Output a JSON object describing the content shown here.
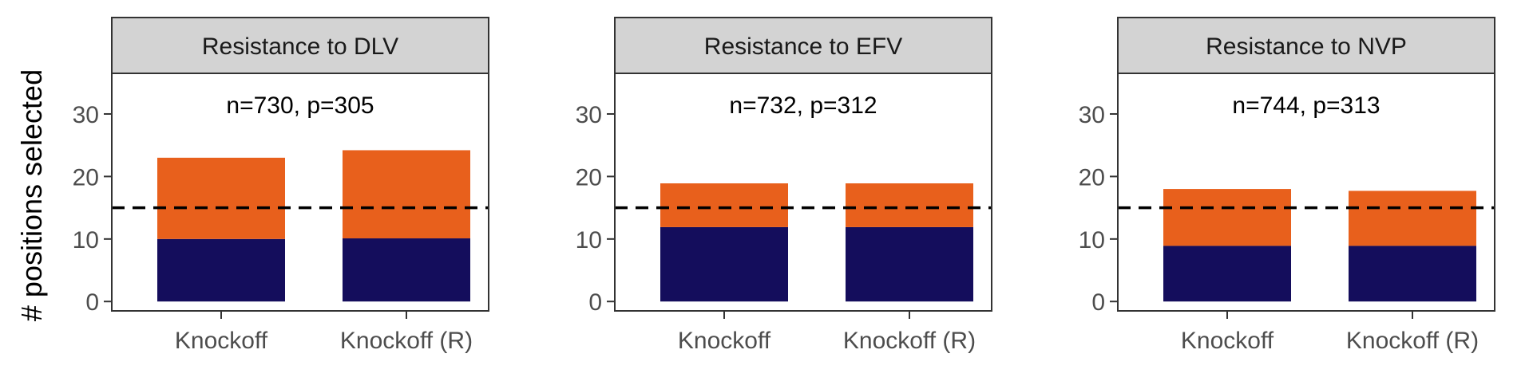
{
  "ylabel": "# positions selected",
  "colors": {
    "top_segment": "#E8601C",
    "bottom_segment": "#140D5C",
    "strip_fill": "#D3D3D3",
    "frame": "#333333",
    "reference_line": "#000000"
  },
  "chart_data": [
    {
      "type": "bar",
      "stacked": true,
      "title": "Resistance to DLV",
      "annotation": "n=730, p=305",
      "categories": [
        "Knockoff",
        "Knockoff (R)"
      ],
      "series": [
        {
          "values": [
            10,
            10.1
          ]
        },
        {
          "values": [
            13,
            14.1
          ]
        }
      ],
      "totals": [
        23,
        24.2
      ],
      "reference_line": 15,
      "yticks": [
        0,
        10,
        20,
        30
      ],
      "ylim": [
        -1.5,
        36.5
      ]
    },
    {
      "type": "bar",
      "stacked": true,
      "title": "Resistance to EFV",
      "annotation": "n=732, p=312",
      "categories": [
        "Knockoff",
        "Knockoff (R)"
      ],
      "series": [
        {
          "values": [
            11.9,
            11.9
          ]
        },
        {
          "values": [
            7,
            7
          ]
        }
      ],
      "totals": [
        18.9,
        18.9
      ],
      "reference_line": 15,
      "yticks": [
        0,
        10,
        20,
        30
      ],
      "ylim": [
        -1.5,
        36.5
      ]
    },
    {
      "type": "bar",
      "stacked": true,
      "title": "Resistance to NVP",
      "annotation": "n=744, p=313",
      "categories": [
        "Knockoff",
        "Knockoff (R)"
      ],
      "series": [
        {
          "values": [
            8.9,
            8.9
          ]
        },
        {
          "values": [
            9.1,
            8.8
          ]
        }
      ],
      "totals": [
        18,
        17.7
      ],
      "reference_line": 15,
      "yticks": [
        0,
        10,
        20,
        30
      ],
      "ylim": [
        -1.5,
        36.5
      ]
    }
  ]
}
